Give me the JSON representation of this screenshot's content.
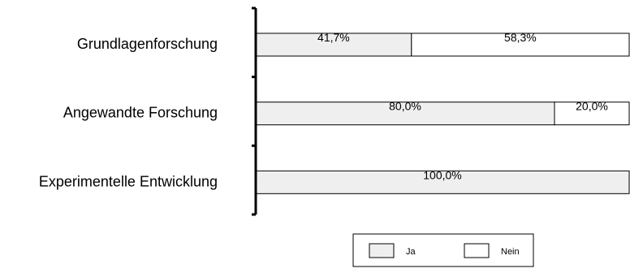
{
  "chart_data": {
    "type": "bar",
    "orientation": "horizontal",
    "stacked": true,
    "percent_scale": true,
    "categories": [
      "Grundlagenforschung",
      "Angewandte Forschung",
      "Experimentelle Entwicklung"
    ],
    "series": [
      {
        "name": "Ja",
        "values": [
          41.7,
          80.0,
          100.0
        ],
        "labels": [
          "41,7%",
          "80,0%",
          "100,0%"
        ],
        "color": "#efefef"
      },
      {
        "name": "Nein",
        "values": [
          58.3,
          20.0,
          0.0
        ],
        "labels": [
          "58,3%",
          "20,0%",
          ""
        ],
        "color": "#ffffff"
      }
    ],
    "xlim": [
      0,
      100
    ],
    "grid": false,
    "legend_position": "bottom"
  }
}
